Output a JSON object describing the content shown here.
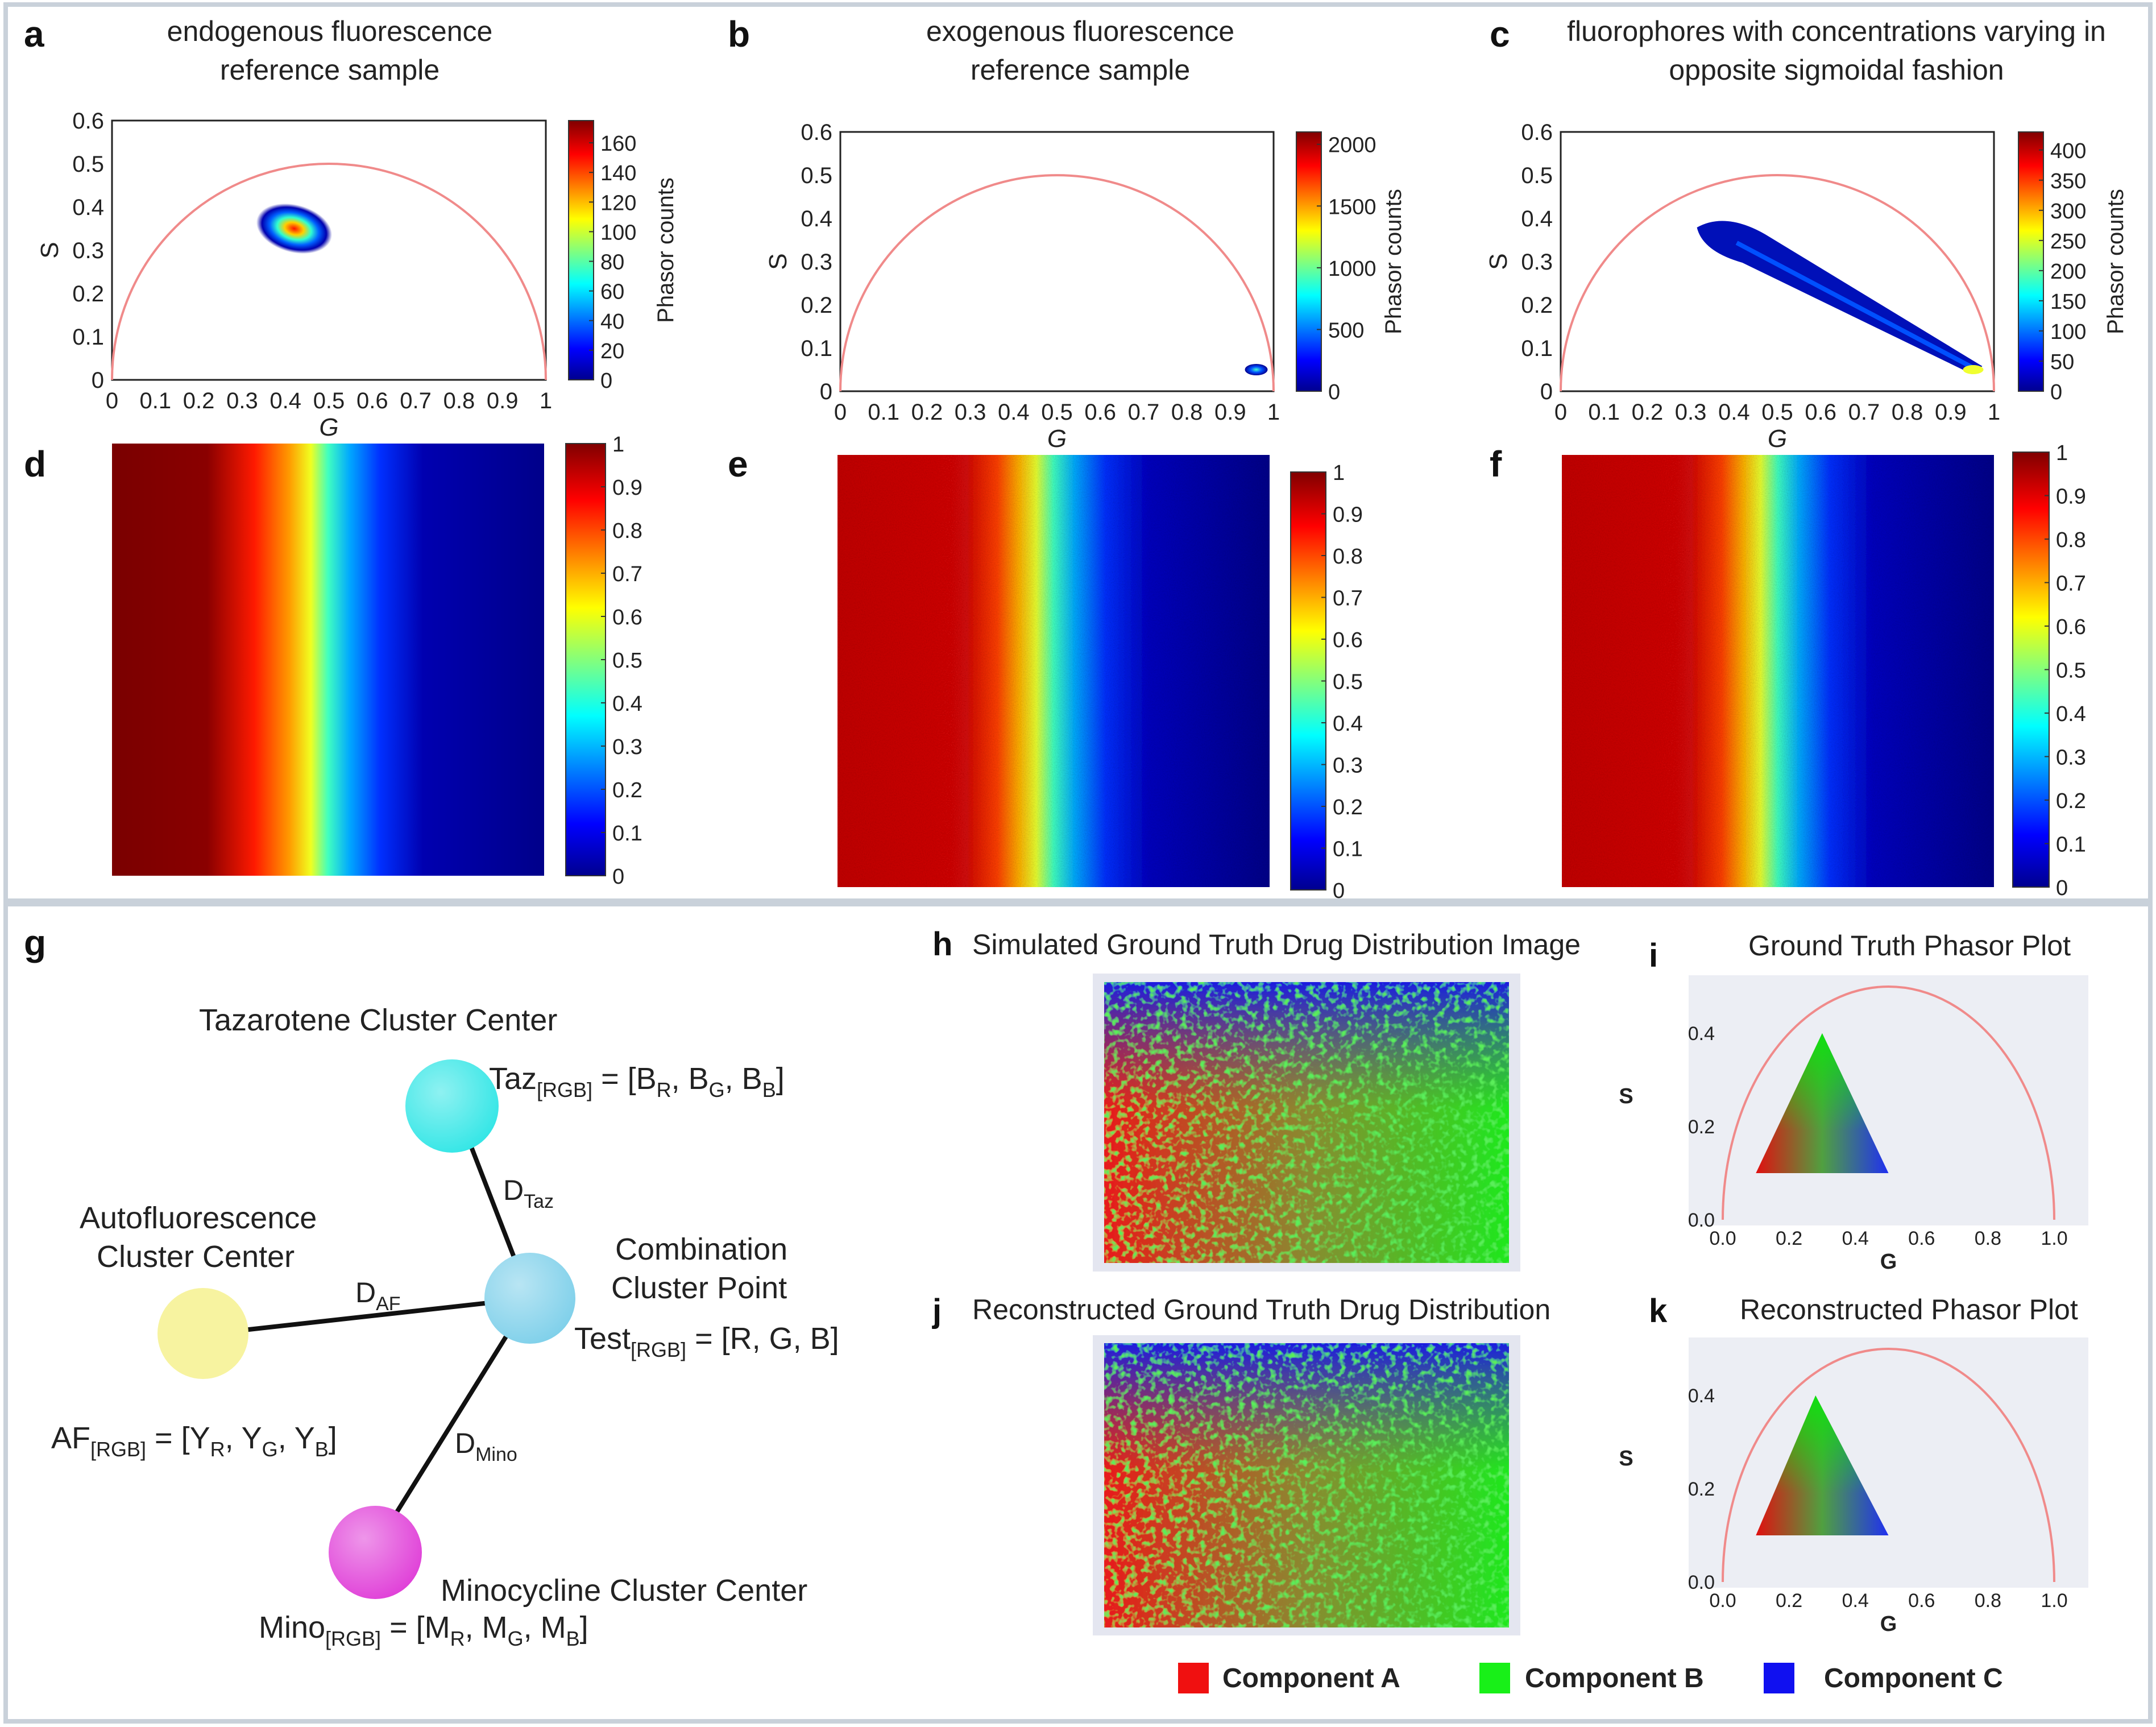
{
  "panels": {
    "a": {
      "letter": "a",
      "title_lines": [
        "endogenous fluorescence",
        "reference sample"
      ]
    },
    "b": {
      "letter": "b",
      "title_lines": [
        "exogenous fluorescence",
        "reference sample"
      ]
    },
    "c": {
      "letter": "c",
      "title_lines": [
        "fluorophores with concentrations varying in",
        "opposite sigmoidal fashion"
      ]
    },
    "d": {
      "letter": "d"
    },
    "e": {
      "letter": "e"
    },
    "f": {
      "letter": "f"
    },
    "g": {
      "letter": "g"
    },
    "h": {
      "letter": "h",
      "title": "Simulated Ground Truth Drug Distribution Image"
    },
    "i": {
      "letter": "i",
      "title": "Ground Truth Phasor Plot"
    },
    "j": {
      "letter": "j",
      "title": "Reconstructed Ground Truth Drug Distribution"
    },
    "k": {
      "letter": "k",
      "title": "Reconstructed Phasor Plot"
    }
  },
  "diagram": {
    "taz_label": "Tazarotene Cluster Center",
    "af_label_lines": [
      "Autofluorescence",
      "Cluster Center"
    ],
    "combo_label_lines": [
      "Combination",
      "Cluster Point"
    ],
    "mino_label": "Minocycline Cluster Center",
    "taz_eq": {
      "base": "Taz",
      "sub": "[RGB]",
      "rest": " = [B",
      "r_sub": "R",
      "g_sub": "G",
      "b_sub": "B"
    },
    "af_eq": {
      "base": "AF",
      "sub": "[RGB]",
      "letter": "Y",
      "r_sub": "R",
      "g_sub": "G",
      "b_sub": "B"
    },
    "test_eq": {
      "base": "Test",
      "sub": "[RGB]",
      "rest": " = [R, G, B]"
    },
    "mino_eq": {
      "base": "Mino",
      "sub": "[RGB]",
      "letter": "M",
      "r_sub": "R",
      "g_sub": "G",
      "b_sub": "B"
    },
    "dist_taz": {
      "base": "D",
      "sub": "Taz"
    },
    "dist_af": {
      "base": "D",
      "sub": "AF"
    },
    "dist_mino": {
      "base": "D",
      "sub": "Mino"
    },
    "colors": {
      "taz": "#33e6e6",
      "af": "#f7f3a0",
      "combo": "#7fd0ea",
      "mino": "#e040d8"
    }
  },
  "legend": [
    {
      "label": "Component A",
      "color": "#f01010"
    },
    {
      "label": "Component B",
      "color": "#18f018"
    },
    {
      "label": "Component C",
      "color": "#1010f0"
    }
  ],
  "chart_data": [
    {
      "panel": "a",
      "type": "scatter",
      "xlabel": "G",
      "ylabel": "S",
      "xticks": [
        "0",
        "0.1",
        "0.2",
        "0.3",
        "0.4",
        "0.5",
        "0.6",
        "0.7",
        "0.8",
        "0.9",
        "1"
      ],
      "yticks": [
        "0",
        "0.1",
        "0.2",
        "0.3",
        "0.4",
        "0.5",
        "0.6"
      ],
      "ylim": [
        0,
        0.6
      ],
      "cluster": {
        "g": 0.42,
        "s": 0.35
      },
      "colorbar_label": "Phasor counts",
      "colorbar_ticks": [
        "0",
        "20",
        "40",
        "60",
        "80",
        "100",
        "120",
        "140",
        "160"
      ],
      "colorbar_max": 175
    },
    {
      "panel": "b",
      "type": "scatter",
      "xlabel": "G",
      "ylabel": "S",
      "xticks": [
        "0",
        "0.1",
        "0.2",
        "0.3",
        "0.4",
        "0.5",
        "0.6",
        "0.7",
        "0.8",
        "0.9",
        "1"
      ],
      "yticks": [
        "0",
        "0.1",
        "0.2",
        "0.3",
        "0.4",
        "0.5",
        "0.6"
      ],
      "ylim": [
        0,
        0.6
      ],
      "cluster": {
        "g": 0.96,
        "s": 0.05
      },
      "colorbar_label": "Phasor counts",
      "colorbar_ticks": [
        "0",
        "500",
        "1000",
        "1500",
        "2000"
      ],
      "colorbar_max": 2100
    },
    {
      "panel": "c",
      "type": "scatter",
      "xlabel": "G",
      "ylabel": "S",
      "xticks": [
        "0",
        "0.1",
        "0.2",
        "0.3",
        "0.4",
        "0.5",
        "0.6",
        "0.7",
        "0.8",
        "0.9",
        "1"
      ],
      "yticks": [
        "0",
        "0.1",
        "0.2",
        "0.3",
        "0.4",
        "0.5",
        "0.6"
      ],
      "ylim": [
        0,
        0.6
      ],
      "cluster_line": {
        "from": {
          "g": 0.38,
          "s": 0.35
        },
        "to": {
          "g": 0.96,
          "s": 0.05
        }
      },
      "colorbar_label": "Phasor counts",
      "colorbar_ticks": [
        "0",
        "50",
        "100",
        "150",
        "200",
        "250",
        "300",
        "350",
        "400"
      ],
      "colorbar_max": 430
    },
    {
      "panel": "d",
      "type": "heatmap",
      "colorbar_ticks": [
        "0",
        "0.1",
        "0.2",
        "0.3",
        "0.4",
        "0.5",
        "0.6",
        "0.7",
        "0.8",
        "0.9",
        "1"
      ],
      "colorbar_max": 1
    },
    {
      "panel": "e",
      "type": "heatmap",
      "noisy": true,
      "colorbar_ticks": [
        "0",
        "0.1",
        "0.2",
        "0.3",
        "0.4",
        "0.5",
        "0.6",
        "0.7",
        "0.8",
        "0.9",
        "1"
      ],
      "colorbar_max": 1
    },
    {
      "panel": "f",
      "type": "heatmap",
      "noisy": true,
      "colorbar_ticks": [
        "0",
        "0.1",
        "0.2",
        "0.3",
        "0.4",
        "0.5",
        "0.6",
        "0.7",
        "0.8",
        "0.9",
        "1"
      ],
      "colorbar_max": 1
    },
    {
      "panel": "i",
      "type": "scatter",
      "xlabel": "G",
      "ylabel": "S",
      "xticks": [
        "0.0",
        "0.2",
        "0.4",
        "0.6",
        "0.8",
        "1.0"
      ],
      "yticks": [
        "0.0",
        "0.2",
        "0.4"
      ],
      "triangle": [
        {
          "g": 0.1,
          "s": 0.1
        },
        {
          "g": 0.3,
          "s": 0.4
        },
        {
          "g": 0.5,
          "s": 0.1
        }
      ]
    },
    {
      "panel": "k",
      "type": "scatter",
      "xlabel": "G",
      "ylabel": "S",
      "xticks": [
        "0.0",
        "0.2",
        "0.4",
        "0.6",
        "0.8",
        "1.0"
      ],
      "yticks": [
        "0.0",
        "0.2",
        "0.4"
      ],
      "triangle": [
        {
          "g": 0.1,
          "s": 0.1
        },
        {
          "g": 0.28,
          "s": 0.4
        },
        {
          "g": 0.5,
          "s": 0.1
        }
      ]
    }
  ]
}
